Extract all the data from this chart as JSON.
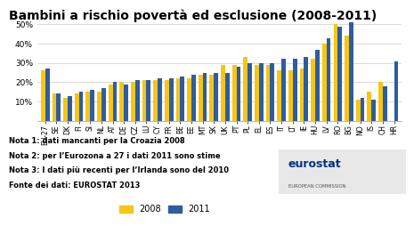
{
  "title": "Bambini a rischio povertà ed esclusione (2008-2011)",
  "categories": [
    "EU-27",
    "SE",
    "DK",
    "FI",
    "SI",
    "NL",
    "AT",
    "DE",
    "CZ",
    "LU",
    "CY",
    "FR",
    "BE",
    "EE",
    "MT",
    "SK",
    "UK",
    "PT",
    "PL",
    "EL",
    "ES",
    "IT",
    "LT",
    "IE",
    "HU",
    "LV",
    "RO",
    "BG",
    "NO",
    "IS",
    "CH",
    "HR"
  ],
  "values_2008": [
    26,
    14,
    12,
    14,
    15,
    15,
    19,
    20,
    20,
    21,
    21,
    21,
    22,
    22,
    24,
    24,
    29,
    29,
    33,
    29,
    29,
    26,
    26,
    27,
    32,
    40,
    50,
    44,
    11,
    15,
    20,
    null
  ],
  "values_2011": [
    27,
    14,
    13,
    15,
    16,
    17,
    20,
    19,
    21,
    21,
    22,
    22,
    23,
    24,
    25,
    25,
    25,
    28,
    30,
    30,
    30,
    32,
    32,
    33,
    37,
    43,
    49,
    51,
    12,
    11,
    18,
    31
  ],
  "color_2008": "#F5C518",
  "color_2011": "#2E5D9E",
  "ylabel_ticks": [
    "10%",
    "20%",
    "30%",
    "40%",
    "50%"
  ],
  "yticks": [
    10,
    20,
    30,
    40,
    50
  ],
  "ylim": [
    0,
    55
  ],
  "note1": "Nota 1: dati mancanti per la Croazia 2008",
  "note2": "Nota 2: per l’Eurozona a 27 i dati 2011 sono stime",
  "note3": "Nota 3: I dati più recenti per l’Irlanda sono del 2010",
  "note4": "Fonte dei dati: EUROSTAT 2013",
  "bg_color": "#FFFFFF",
  "title_fontsize": 10,
  "legend_fontsize": 7,
  "note_fontsize": 6,
  "tick_fontsize": 5.5,
  "ytick_fontsize": 6.5
}
